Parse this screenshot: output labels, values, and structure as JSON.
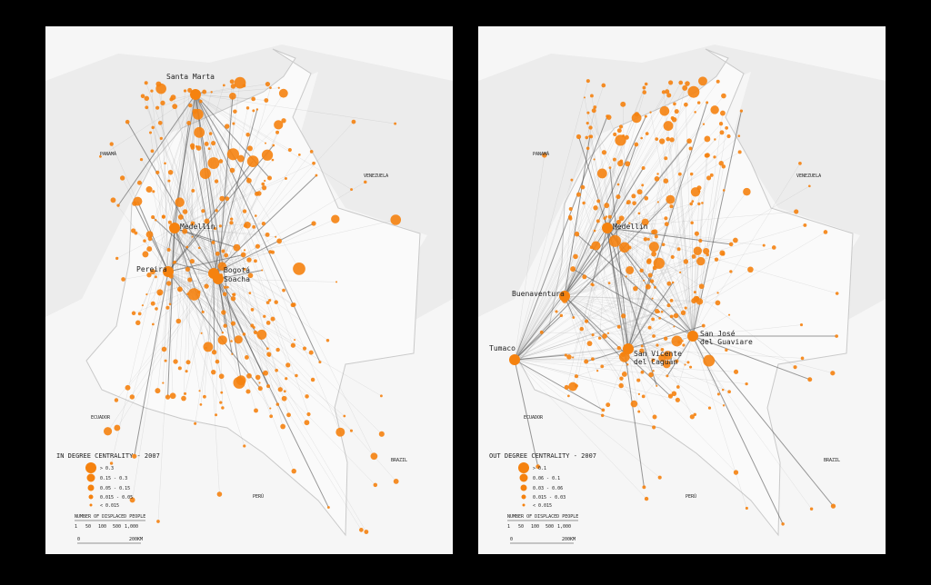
{
  "panels": [
    {
      "title": "IN DEGREE CENTRALITY - 2007",
      "cities": [
        {
          "label": [
            "Santa Marta"
          ]
        },
        {
          "label": [
            "Medellín"
          ]
        },
        {
          "label": [
            "Pereira"
          ]
        },
        {
          "label": [
            "Bogotá"
          ]
        },
        {
          "label": [
            "Soacha"
          ]
        }
      ],
      "legend": [
        "> 0.3",
        "0.15 - 0.3",
        "0.05 - 0.15",
        "0.015 - 0.05",
        "< 0.015"
      ]
    },
    {
      "title": "OUT DEGREE CENTRALITY - 2007",
      "cities": [
        {
          "label": [
            "Medellín"
          ]
        },
        {
          "label": [
            "Buenaventura"
          ]
        },
        {
          "label": [
            "Tumaco"
          ]
        },
        {
          "label": [
            "San José",
            "del Guaviare"
          ]
        },
        {
          "label": [
            "San Vicente",
            "del Caguán"
          ]
        }
      ],
      "legend": [
        "> 0.1",
        "0.06 - 0.1",
        "0.03 - 0.06",
        "0.015 - 0.03",
        "< 0.015"
      ]
    }
  ],
  "countries": [
    "PANAMÁ",
    "VENEZUELA",
    "ECUADOR",
    "PERÚ",
    "BRAZIL"
  ],
  "flow_legend": {
    "title": "NUMBER OF DISPLACED PEOPLE",
    "labels": [
      "1",
      "50",
      "100",
      "500",
      "1,000"
    ]
  },
  "scale_bar": {
    "start": "0",
    "end": "200KM"
  }
}
